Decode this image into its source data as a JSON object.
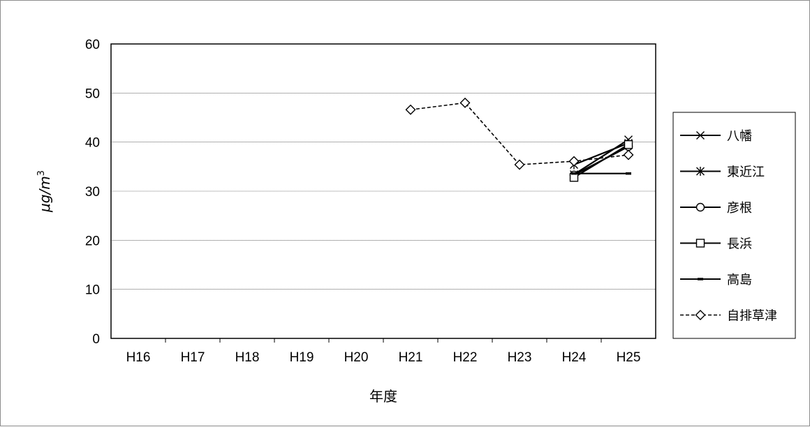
{
  "chart_data": {
    "type": "line",
    "title": "",
    "xlabel": "年度",
    "ylabel_main": "μg/m",
    "ylabel_sup": "3",
    "categories": [
      "H16",
      "H17",
      "H18",
      "H19",
      "H20",
      "H21",
      "H22",
      "H23",
      "H24",
      "H25"
    ],
    "ylim": [
      0,
      60
    ],
    "yticks": [
      "0",
      "10",
      "20",
      "30",
      "40",
      "50",
      "60"
    ],
    "grid": true,
    "legend_position": "right",
    "series": [
      {
        "name": "八幡",
        "marker": "x",
        "dash": false,
        "values": [
          null,
          null,
          null,
          null,
          null,
          null,
          null,
          null,
          33.4,
          40.5
        ]
      },
      {
        "name": "東近江",
        "marker": "asterisk",
        "dash": false,
        "values": [
          null,
          null,
          null,
          null,
          null,
          null,
          null,
          null,
          35.4,
          39.8
        ]
      },
      {
        "name": "彦根",
        "marker": "circle",
        "dash": false,
        "values": [
          null,
          null,
          null,
          null,
          null,
          null,
          null,
          null,
          33.3,
          39.1
        ]
      },
      {
        "name": "長浜",
        "marker": "square",
        "dash": false,
        "values": [
          null,
          null,
          null,
          null,
          null,
          null,
          null,
          null,
          32.8,
          39.5
        ]
      },
      {
        "name": "高島",
        "marker": "dash",
        "dash": false,
        "values": [
          null,
          null,
          null,
          null,
          null,
          null,
          null,
          null,
          33.6,
          33.6
        ]
      },
      {
        "name": "自排草津",
        "marker": "diamond",
        "dash": true,
        "values": [
          null,
          null,
          null,
          null,
          null,
          46.6,
          48.0,
          35.4,
          36.1,
          37.4
        ]
      }
    ]
  }
}
